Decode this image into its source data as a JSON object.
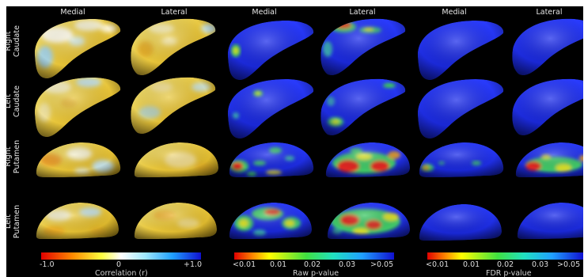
{
  "column_headers": [
    "Medial",
    "Lateral",
    "Medial",
    "Lateral",
    "Medial",
    "Lateral"
  ],
  "row_labels": [
    [
      "Right",
      "Caudate"
    ],
    [
      "Left",
      "Caudate"
    ],
    [
      "Right",
      "Putamen"
    ],
    [
      "Left",
      "Putamen"
    ]
  ],
  "colorbars": [
    {
      "title": "Correlation (r)",
      "ticks": [
        "-1.0",
        "0",
        "+1.0"
      ]
    },
    {
      "title": "Raw p-value",
      "ticks": [
        "<0.01",
        "0.01",
        "0.02",
        "0.03",
        ">0.05"
      ]
    },
    {
      "title": "FDR p-value",
      "ticks": [
        "<0.01",
        "0.01",
        "0.02",
        "0.03",
        ">0.05"
      ]
    }
  ]
}
